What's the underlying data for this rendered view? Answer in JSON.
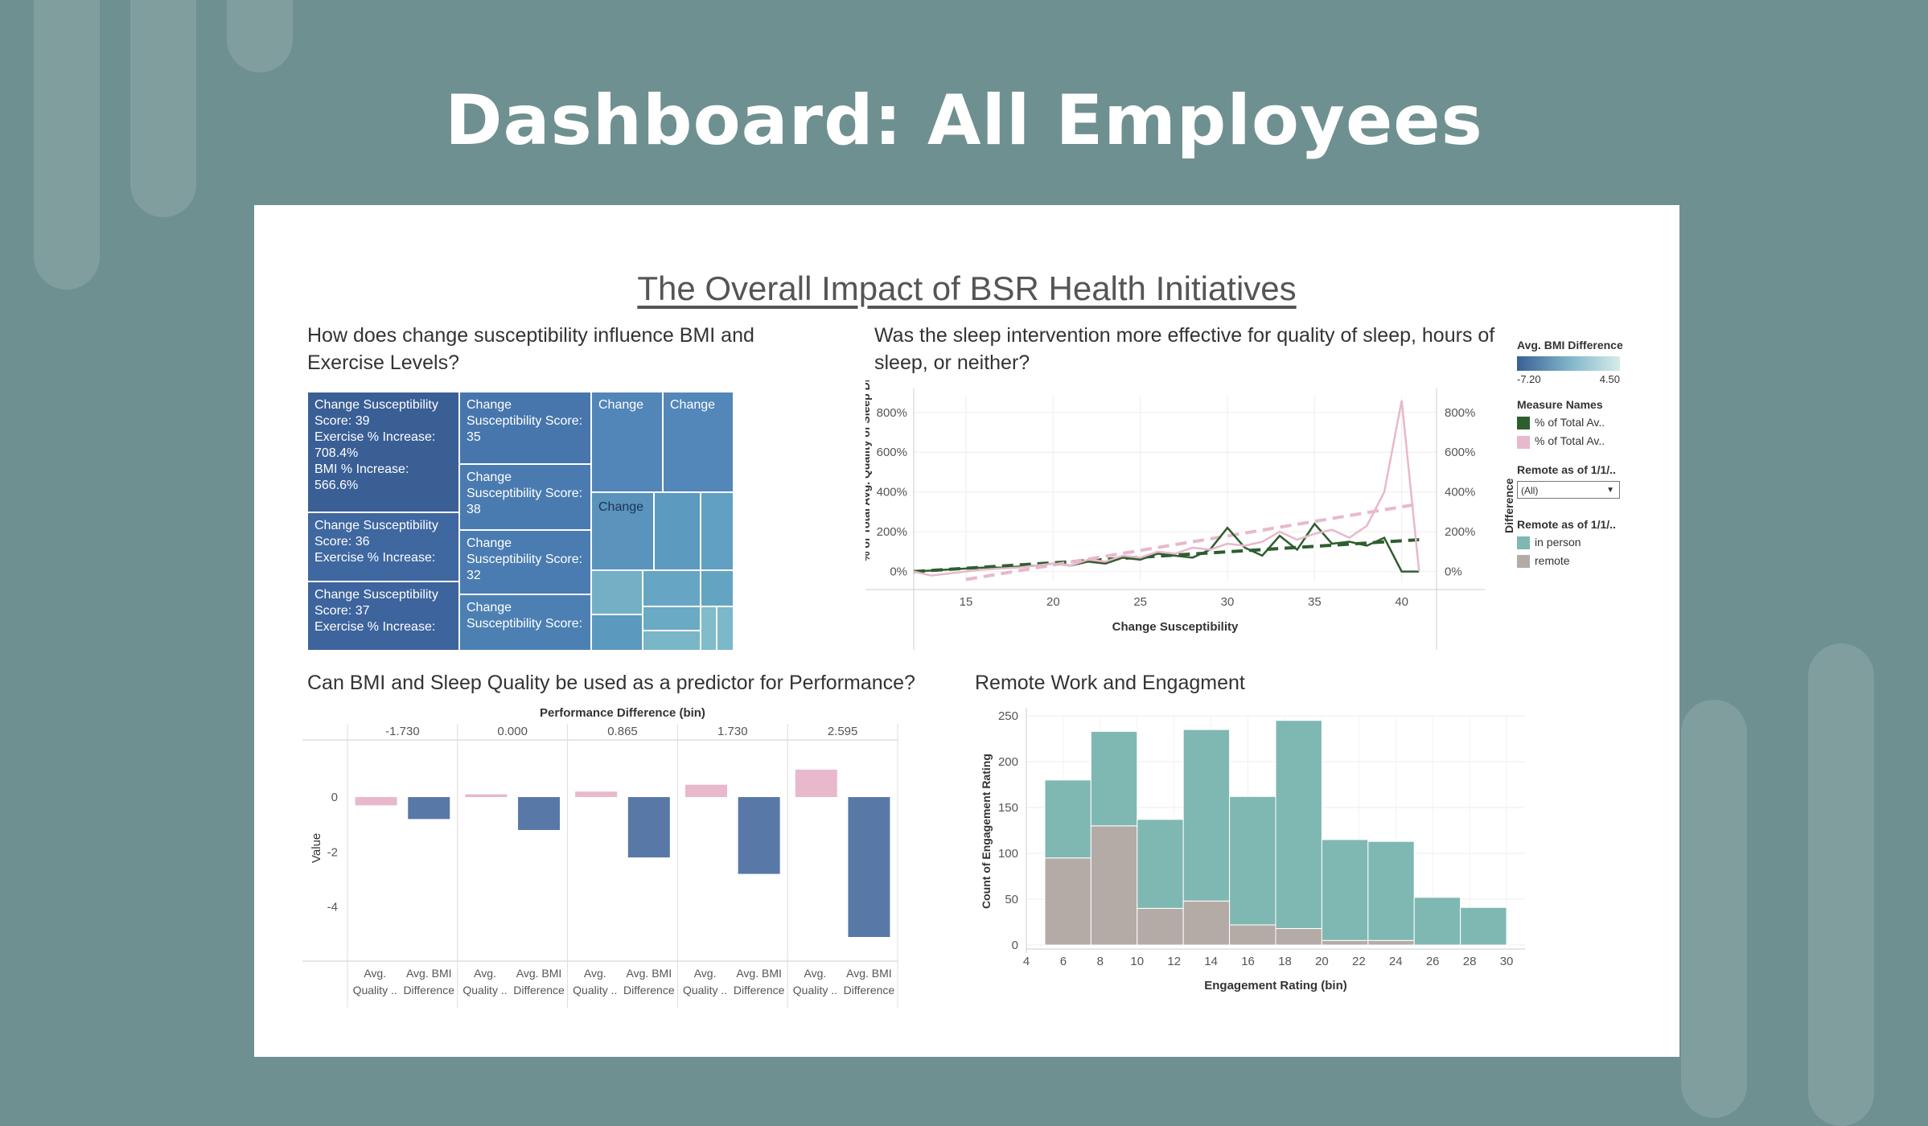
{
  "page": {
    "title": "Dashboard: All Employees"
  },
  "dashboard": {
    "heading": "The Overall Impact of BSR Health Initiatives",
    "q1": "How does change susceptibility influence BMI and Exercise Levels?",
    "q2": "Was the sleep intervention more effective for quality of sleep, hours of sleep, or neither?",
    "q3": "Can BMI and Sleep Quality be used as a predictor for Performance?",
    "q4": "Remote Work and Engagment"
  },
  "treemap": {
    "tiles": [
      {
        "text": "Change Susceptibility Score: 39\nExercise % Increase: 708.4%\nBMI % Increase: 566.6%",
        "color": "#3a5f95"
      },
      {
        "text": "Change Susceptibility Score: 36\nExercise % Increase:",
        "color": "#3f67a0"
      },
      {
        "text": "Change Susceptibility Score: 37\nExercise % Increase:",
        "color": "#3d649c"
      },
      {
        "text": "Change Susceptibility Score: 35",
        "color": "#4776ac"
      },
      {
        "text": "Change Susceptibility Score: 38",
        "color": "#4a7bb0"
      },
      {
        "text": "Change Susceptibility Score: 32",
        "color": "#4a7cb1"
      },
      {
        "text": "Change Susceptibility Score:",
        "color": "#4c80b3"
      },
      {
        "text": "Change",
        "color": "#5285b8"
      },
      {
        "text": "Change",
        "color": "#5387b9"
      },
      {
        "text": "Change",
        "color": "#5a93bc"
      }
    ]
  },
  "legend": {
    "bmi_title": "Avg. BMI Difference",
    "bmi_min": "-7.20",
    "bmi_max": "4.50",
    "measure_title": "Measure Names",
    "measure_items": [
      {
        "label": "% of Total Av..",
        "color": "#2e5e2e"
      },
      {
        "label": "% of Total Av..",
        "color": "#e8b8cc"
      }
    ],
    "remote_filter_title": "Remote as of 1/1/..",
    "remote_filter_value": "(All)",
    "remote_color_title": "Remote as of 1/1/..",
    "remote_items": [
      {
        "label": "in person",
        "color": "#7fb8b2"
      },
      {
        "label": "remote",
        "color": "#b5aba6"
      }
    ]
  },
  "chart_data": [
    {
      "type": "line",
      "title": "Was the sleep intervention more effective for quality of sleep, hours of sleep, or neither?",
      "xlabel": "Change Susceptibility",
      "ylabel": "% of Total Avg. Quality of Sleep Difference",
      "ylabel_right": "Difference",
      "xlim": [
        12,
        42
      ],
      "ylim": [
        -50,
        880
      ],
      "xticks": [
        "15",
        "20",
        "25",
        "30",
        "35",
        "40"
      ],
      "yticks_left": [
        "0%",
        "200%",
        "400%",
        "600%",
        "800%"
      ],
      "yticks_right": [
        "0%",
        "200%",
        "400%",
        "600%",
        "800%"
      ],
      "x": [
        12,
        13,
        14,
        15,
        16,
        17,
        18,
        19,
        20,
        21,
        22,
        23,
        24,
        25,
        26,
        27,
        28,
        29,
        30,
        31,
        32,
        33,
        34,
        35,
        36,
        37,
        38,
        39,
        40,
        41
      ],
      "series": [
        {
          "name": "% of Total Av..",
          "color": "#2e5e2e",
          "values": [
            0,
            5,
            10,
            15,
            20,
            20,
            25,
            30,
            40,
            30,
            50,
            40,
            70,
            60,
            90,
            80,
            70,
            110,
            220,
            120,
            80,
            180,
            110,
            240,
            140,
            150,
            130,
            170,
            0,
            0
          ]
        },
        {
          "name": "% of Total Av..",
          "color": "#e8b8cc",
          "values": [
            0,
            -20,
            -10,
            0,
            10,
            15,
            20,
            30,
            40,
            30,
            60,
            50,
            80,
            70,
            100,
            90,
            120,
            110,
            140,
            130,
            150,
            200,
            160,
            190,
            210,
            170,
            230,
            400,
            860,
            0
          ]
        }
      ],
      "trendlines": [
        {
          "color": "#2e5e2e",
          "from": [
            12,
            0
          ],
          "to": [
            41,
            160
          ]
        },
        {
          "color": "#e8b8cc",
          "from": [
            15,
            -40
          ],
          "to": [
            41,
            340
          ]
        }
      ],
      "grid": true
    },
    {
      "type": "bar",
      "title": "Can BMI and Sleep Quality be used as a predictor for Performance?",
      "header": "Performance Difference (bin)",
      "ylabel": "Value",
      "ylim": [
        -5.1,
        1.35
      ],
      "yticks": [
        "0",
        "-2",
        "-4"
      ],
      "categories": [
        "-1.730",
        "0.000",
        "0.865",
        "1.730",
        "2.595"
      ],
      "bar_labels": [
        "Avg. Quality ..",
        "Avg. BMI Difference"
      ],
      "series": [
        {
          "name": "Avg. Quality ..",
          "values": [
            -0.3,
            0.1,
            0.2,
            0.45,
            1.0
          ]
        },
        {
          "name": "Avg. BMI Difference",
          "values": [
            -0.8,
            -1.2,
            -2.2,
            -2.8,
            -5.1
          ]
        }
      ],
      "colors": {
        "quality": "#e8b8cc",
        "bmi": "#5878a8"
      }
    },
    {
      "type": "bar",
      "title": "Remote Work and Engagment",
      "stacked": true,
      "xlabel": "Engagement Rating (bin)",
      "ylabel": "Count of Engagement Rating",
      "xlim": [
        4,
        31
      ],
      "ylim": [
        0,
        250
      ],
      "xticks": [
        "4",
        "6",
        "8",
        "10",
        "12",
        "14",
        "16",
        "18",
        "20",
        "22",
        "24",
        "26",
        "28",
        "30"
      ],
      "yticks": [
        "0",
        "50",
        "100",
        "150",
        "200",
        "250"
      ],
      "bin_starts": [
        5,
        7.5,
        10,
        12.5,
        15,
        17.5,
        20,
        22.5,
        25,
        27.5
      ],
      "bin_width": 2.5,
      "series": [
        {
          "name": "remote",
          "values": [
            95,
            130,
            40,
            48,
            22,
            18,
            5,
            5,
            0,
            0
          ]
        },
        {
          "name": "in person",
          "values": [
            85,
            103,
            97,
            187,
            140,
            227,
            110,
            108,
            52,
            41
          ]
        }
      ],
      "colors": {
        "remote": "#b5aba6",
        "in person": "#7fb8b2"
      }
    }
  ]
}
